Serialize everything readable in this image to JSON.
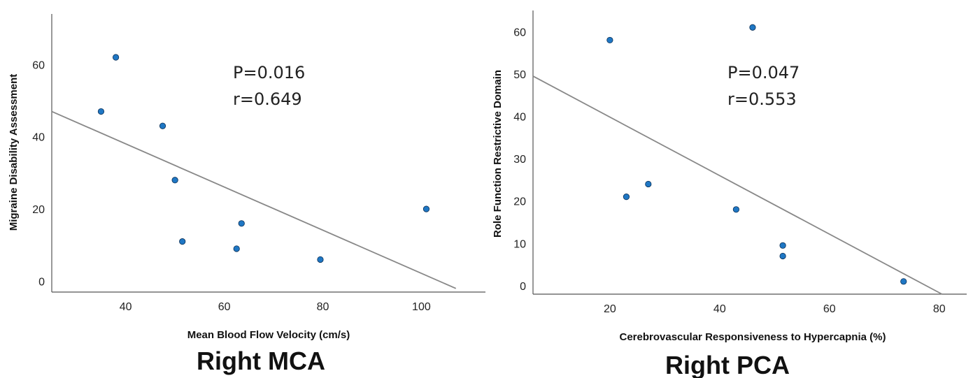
{
  "chart_data": [
    {
      "type": "scatter",
      "caption": "Right MCA",
      "xlabel": "Mean Blood Flow Velocity (cm/s)",
      "ylabel": "Migraine Disability Assessment",
      "xlim": [
        25,
        113
      ],
      "ylim": [
        -3,
        74
      ],
      "xticks": [
        40,
        60,
        80,
        100
      ],
      "yticks": [
        0,
        20,
        40,
        60
      ],
      "annotations": [
        "P=0.016",
        "r=0.649"
      ],
      "fit_line": {
        "x": [
          25,
          107
        ],
        "y": [
          47,
          -2
        ]
      },
      "points": [
        {
          "x": 35,
          "y": 47
        },
        {
          "x": 38,
          "y": 62
        },
        {
          "x": 47.5,
          "y": 43
        },
        {
          "x": 50,
          "y": 28
        },
        {
          "x": 51.5,
          "y": 11
        },
        {
          "x": 62.5,
          "y": 9
        },
        {
          "x": 63.5,
          "y": 16
        },
        {
          "x": 79.5,
          "y": 6
        },
        {
          "x": 101,
          "y": 20
        }
      ],
      "point_color": "#1f77c4",
      "line_color": "#888888"
    },
    {
      "type": "scatter",
      "caption": "Right PCA",
      "xlabel": "Cerebrovascular Responsiveness to Hypercapnia (%)",
      "ylabel": "Role Function Restrictive Domain",
      "xlim": [
        6,
        85
      ],
      "ylim": [
        -2,
        65
      ],
      "xticks": [
        20,
        40,
        60,
        80
      ],
      "yticks": [
        0,
        10,
        20,
        30,
        40,
        50,
        60
      ],
      "annotations": [
        "P=0.047",
        "r=0.553"
      ],
      "fit_line": {
        "x": [
          6,
          80.5
        ],
        "y": [
          49.5,
          -2
        ]
      },
      "points": [
        {
          "x": 20,
          "y": 58
        },
        {
          "x": 23,
          "y": 21
        },
        {
          "x": 27,
          "y": 24
        },
        {
          "x": 43,
          "y": 18
        },
        {
          "x": 46,
          "y": 61
        },
        {
          "x": 51.5,
          "y": 9.5
        },
        {
          "x": 51.5,
          "y": 7
        },
        {
          "x": 73.5,
          "y": 1
        }
      ],
      "point_color": "#1f77c4",
      "line_color": "#888888"
    }
  ]
}
